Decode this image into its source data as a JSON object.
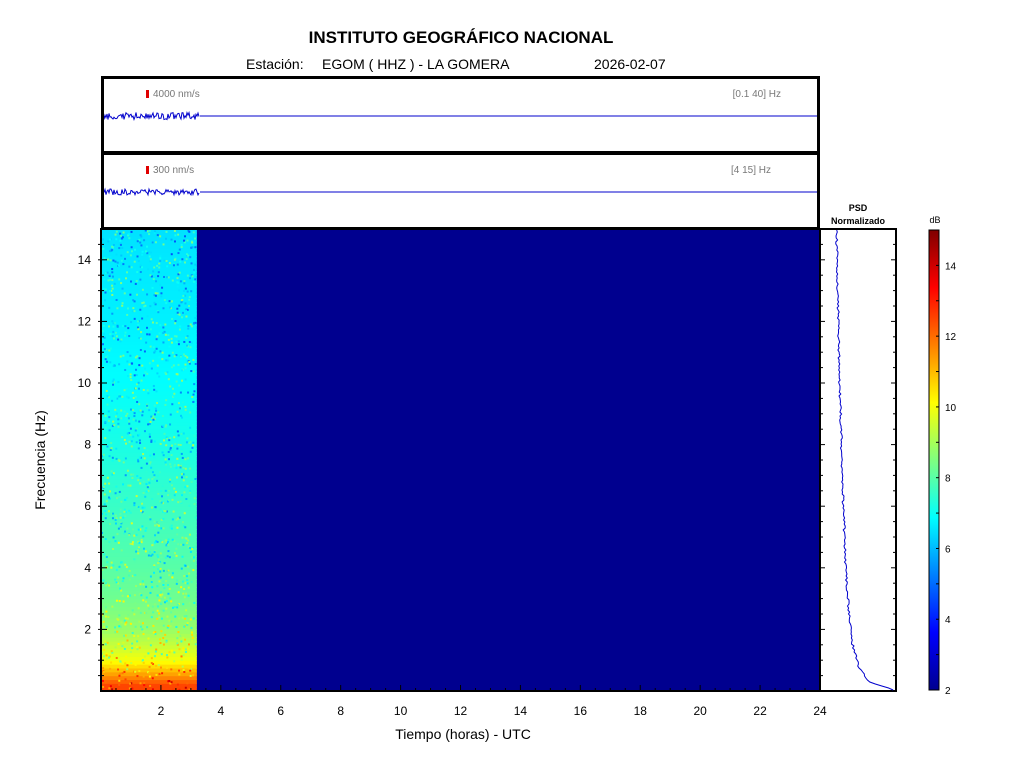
{
  "header": {
    "title": "INSTITUTO GEOGRÁFICO NACIONAL",
    "station_label": "Estación:",
    "station": "EGOM ( HHZ ) - LA GOMERA",
    "date": "2026-02-07"
  },
  "traces": [
    {
      "scale": "4000 nm/s",
      "band": "[0.1 40] Hz"
    },
    {
      "scale": "300 nm/s",
      "band": "[4 15] Hz"
    }
  ],
  "psd": {
    "title_line1": "PSD",
    "title_line2": "Normalizado"
  },
  "colorbar": {
    "label": "dB",
    "ticks": [
      "2",
      "4",
      "6",
      "8",
      "10",
      "12",
      "14"
    ]
  },
  "colors": {
    "spectrogram_background": "#00008f",
    "trace": "#0000cc",
    "scale_bar": "#e00000"
  },
  "chart_data": {
    "type": "heatmap",
    "xlabel": "Tiempo (horas) - UTC",
    "ylabel": "Frecuencia  (Hz)",
    "xlim": [
      0,
      24
    ],
    "ylim": [
      0,
      15
    ],
    "x_ticks": [
      2,
      4,
      6,
      8,
      10,
      12,
      14,
      16,
      18,
      20,
      22,
      24
    ],
    "y_ticks": [
      2,
      4,
      6,
      8,
      10,
      12,
      14
    ],
    "colorbar_range_db": [
      2,
      15
    ],
    "data_end_hour": 3.2,
    "spectrogram_db_by_frequency": [
      {
        "frequency_hz": 0.2,
        "db": 12.5
      },
      {
        "frequency_hz": 0.5,
        "db": 11.5
      },
      {
        "frequency_hz": 1,
        "db": 10
      },
      {
        "frequency_hz": 2,
        "db": 8.8
      },
      {
        "frequency_hz": 3,
        "db": 8.3
      },
      {
        "frequency_hz": 4,
        "db": 8
      },
      {
        "frequency_hz": 6,
        "db": 7.6
      },
      {
        "frequency_hz": 8,
        "db": 7.2
      },
      {
        "frequency_hz": 10,
        "db": 6.9
      },
      {
        "frequency_hz": 12,
        "db": 6.7
      },
      {
        "frequency_hz": 14,
        "db": 6.6
      },
      {
        "frequency_hz": 15,
        "db": 6.5
      }
    ],
    "psd_normalized": [
      {
        "frequency_hz": 0.05,
        "value": 0.95
      },
      {
        "frequency_hz": 0.3,
        "value": 0.55
      },
      {
        "frequency_hz": 0.8,
        "value": 0.4
      },
      {
        "frequency_hz": 1.5,
        "value": 0.3
      },
      {
        "frequency_hz": 2.5,
        "value": 0.24
      },
      {
        "frequency_hz": 4,
        "value": 0.19
      },
      {
        "frequency_hz": 6,
        "value": 0.15
      },
      {
        "frequency_hz": 8,
        "value": 0.12
      },
      {
        "frequency_hz": 10,
        "value": 0.09
      },
      {
        "frequency_hz": 12,
        "value": 0.07
      },
      {
        "frequency_hz": 14,
        "value": 0.05
      },
      {
        "frequency_hz": 15,
        "value": 0.04
      }
    ]
  }
}
